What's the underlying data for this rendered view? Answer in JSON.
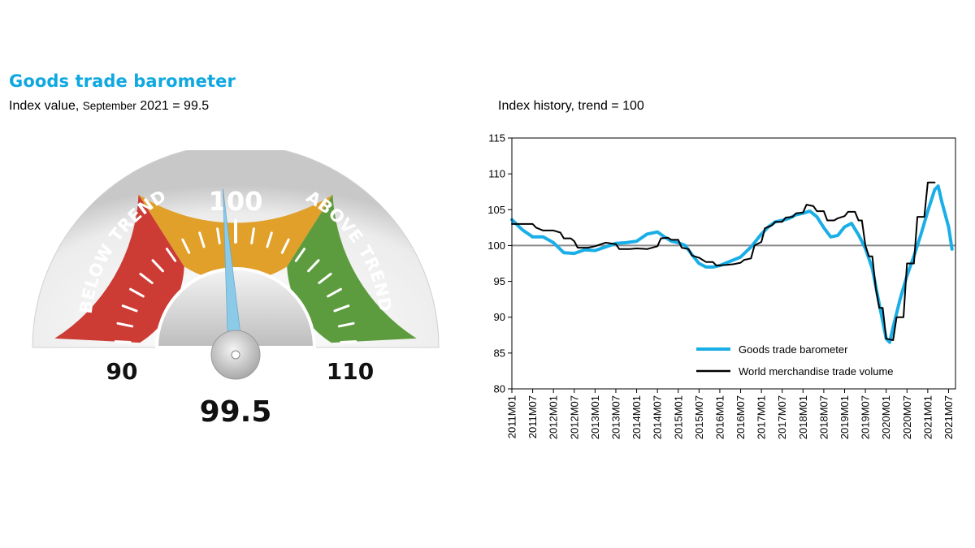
{
  "header": {
    "title": "Goods trade barometer",
    "subtitle_main": "Index value, ",
    "subtitle_small": "September",
    "subtitle_rest": " 2021 = 99.5",
    "chart_title": "Index history, trend = 100"
  },
  "gauge": {
    "value": 99.5,
    "value_label": "99.5",
    "min": 90,
    "max": 110,
    "min_label": "90",
    "max_label": "110",
    "center_label": "100",
    "below_label": "BELOW TREND",
    "above_label": "ABOVE TREND",
    "colors": {
      "below": "#cd3b35",
      "mid": "#e0a02a",
      "above": "#5c9c3e",
      "needle": "#8ccbe8"
    }
  },
  "chart_data": {
    "type": "line",
    "title": "Index history, trend = 100",
    "ylim": [
      80,
      115
    ],
    "yticks": [
      80,
      85,
      90,
      95,
      100,
      105,
      110,
      115
    ],
    "reference_line": 100,
    "grid": false,
    "legend_position": "bottom-right",
    "x_tick_labels": [
      "2011M01",
      "2011M07",
      "2012M01",
      "2012M07",
      "2013M01",
      "2013M07",
      "2014M01",
      "2014M07",
      "2015M01",
      "2015M07",
      "2016M01",
      "2016M07",
      "2017M01",
      "2017M07",
      "2018M01",
      "2018M07",
      "2019M01",
      "2019M07",
      "2020M01",
      "2020M07",
      "2021M01",
      "2021M07"
    ],
    "x_tick_months": [
      0,
      6,
      12,
      18,
      24,
      30,
      36,
      42,
      48,
      54,
      60,
      66,
      72,
      78,
      84,
      90,
      96,
      102,
      108,
      114,
      120,
      126
    ],
    "x_range_months": [
      0,
      128
    ],
    "series": [
      {
        "name": "Goods trade barometer",
        "color": "#1aaee6",
        "points": [
          [
            0,
            103.6
          ],
          [
            3,
            102.2
          ],
          [
            6,
            101.2
          ],
          [
            9,
            101.2
          ],
          [
            12,
            100.4
          ],
          [
            15,
            99
          ],
          [
            18,
            98.9
          ],
          [
            21,
            99.4
          ],
          [
            24,
            99.3
          ],
          [
            27,
            99.8
          ],
          [
            30,
            100.3
          ],
          [
            33,
            100.4
          ],
          [
            36,
            100.6
          ],
          [
            39,
            101.6
          ],
          [
            42,
            101.9
          ],
          [
            44,
            101.2
          ],
          [
            46,
            100.6
          ],
          [
            48,
            100.4
          ],
          [
            50,
            100
          ],
          [
            52,
            98.7
          ],
          [
            54,
            97.5
          ],
          [
            56,
            97
          ],
          [
            58,
            97
          ],
          [
            60,
            97.2
          ],
          [
            63,
            97.8
          ],
          [
            66,
            98.4
          ],
          [
            69,
            99.8
          ],
          [
            72,
            101.6
          ],
          [
            74,
            102.6
          ],
          [
            76,
            103.3
          ],
          [
            78,
            103.5
          ],
          [
            80,
            103.8
          ],
          [
            82,
            104.3
          ],
          [
            84,
            104.5
          ],
          [
            86,
            104.8
          ],
          [
            88,
            104
          ],
          [
            90,
            102.5
          ],
          [
            92,
            101.2
          ],
          [
            94,
            101.4
          ],
          [
            96,
            102.6
          ],
          [
            98,
            103.1
          ],
          [
            100,
            101.5
          ],
          [
            102,
            99.6
          ],
          [
            104,
            96.8
          ],
          [
            106,
            91.8
          ],
          [
            108,
            87
          ],
          [
            109,
            86.5
          ],
          [
            110,
            88.6
          ],
          [
            112,
            92.5
          ],
          [
            114,
            95.8
          ],
          [
            116,
            98.5
          ],
          [
            118,
            101.5
          ],
          [
            120,
            104.8
          ],
          [
            122,
            107.8
          ],
          [
            123,
            108.3
          ],
          [
            124,
            106.2
          ],
          [
            126,
            102.6
          ],
          [
            127,
            99.5
          ]
        ]
      },
      {
        "name": "World merchandise trade volume",
        "color": "#000000",
        "points": [
          [
            0,
            103
          ],
          [
            3,
            103
          ],
          [
            3,
            103
          ],
          [
            6,
            103
          ],
          [
            7,
            102.5
          ],
          [
            9,
            102.1
          ],
          [
            12,
            102.1
          ],
          [
            14,
            101.8
          ],
          [
            15,
            101
          ],
          [
            17,
            101
          ],
          [
            18,
            100.6
          ],
          [
            19,
            99.7
          ],
          [
            22,
            99.7
          ],
          [
            24,
            99.9
          ],
          [
            27,
            100.4
          ],
          [
            30,
            100.2
          ],
          [
            31,
            99.5
          ],
          [
            34,
            99.5
          ],
          [
            36,
            99.6
          ],
          [
            39,
            99.5
          ],
          [
            42,
            99.9
          ],
          [
            43,
            101
          ],
          [
            45,
            101.1
          ],
          [
            46,
            100.8
          ],
          [
            48,
            100.8
          ],
          [
            49,
            99.7
          ],
          [
            51,
            99.5
          ],
          [
            52,
            98.6
          ],
          [
            54,
            98.3
          ],
          [
            56,
            97.7
          ],
          [
            58,
            97.7
          ],
          [
            59,
            97.2
          ],
          [
            62,
            97.3
          ],
          [
            64,
            97.4
          ],
          [
            66,
            97.6
          ],
          [
            67,
            98
          ],
          [
            69,
            98.2
          ],
          [
            70,
            100
          ],
          [
            72,
            100.5
          ],
          [
            73,
            102.4
          ],
          [
            75,
            102.8
          ],
          [
            76,
            103.3
          ],
          [
            78,
            103.3
          ],
          [
            79,
            103.9
          ],
          [
            81,
            104
          ],
          [
            82,
            104.5
          ],
          [
            84,
            104.6
          ],
          [
            85,
            105.7
          ],
          [
            87,
            105.5
          ],
          [
            88,
            104.8
          ],
          [
            90,
            104.8
          ],
          [
            91,
            103.5
          ],
          [
            93,
            103.5
          ],
          [
            94,
            103.8
          ],
          [
            96,
            104.1
          ],
          [
            97,
            104.7
          ],
          [
            99,
            104.7
          ],
          [
            100,
            103.5
          ],
          [
            101,
            103.5
          ],
          [
            102,
            100
          ],
          [
            103,
            98.5
          ],
          [
            104,
            98.5
          ],
          [
            105,
            94
          ],
          [
            106,
            91.3
          ],
          [
            107,
            91.3
          ],
          [
            108,
            87
          ],
          [
            110,
            86.8
          ],
          [
            111,
            90
          ],
          [
            113,
            90
          ],
          [
            114,
            97.5
          ],
          [
            116,
            97.5
          ],
          [
            117,
            104
          ],
          [
            119,
            104
          ],
          [
            120,
            108.8
          ],
          [
            122,
            108.8
          ]
        ]
      }
    ]
  }
}
